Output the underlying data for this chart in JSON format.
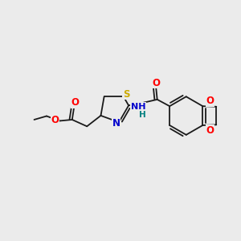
{
  "bg_color": "#ebebeb",
  "bond_color": "#1a1a1a",
  "atom_colors": {
    "O": "#ff0000",
    "N": "#0000cc",
    "S": "#ccaa00",
    "H": "#008080",
    "C": "#1a1a1a"
  },
  "font_size": 8.5,
  "fig_width": 3.0,
  "fig_height": 3.0,
  "dpi": 100,
  "lw": 1.3
}
